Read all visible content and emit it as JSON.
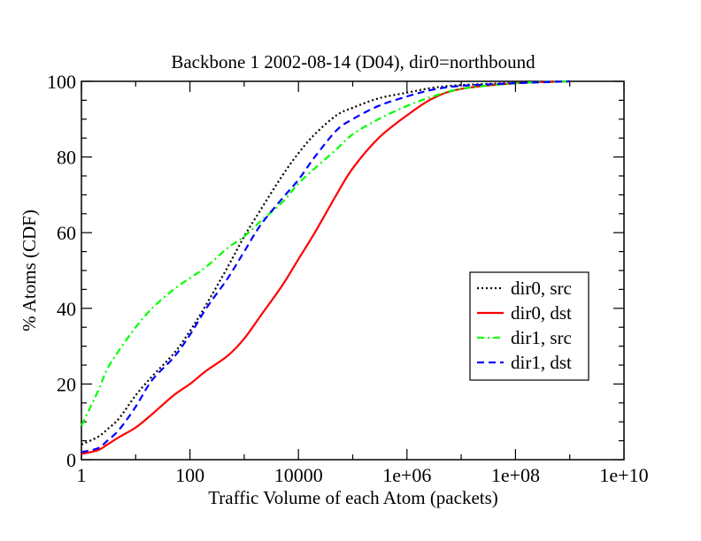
{
  "chart_data": {
    "type": "line",
    "title": "Backbone 1 2002-08-14 (D04), dir0=northbound",
    "xlabel": "Traffic Volume of each Atom (packets)",
    "ylabel": "% Atoms (CDF)",
    "xscale": "log",
    "xlim": [
      1,
      10000000000
    ],
    "ylim": [
      0,
      100
    ],
    "x_ticks": [
      1,
      100,
      10000,
      1000000,
      100000000,
      10000000000
    ],
    "x_tick_labels": [
      "1",
      "100",
      "10000",
      "1e+06",
      "1e+08",
      "1e+10"
    ],
    "y_ticks": [
      0,
      20,
      40,
      60,
      80,
      100
    ],
    "y_tick_labels": [
      "0",
      "20",
      "40",
      "60",
      "80",
      "100"
    ],
    "grid": false,
    "legend_position": "right-middle",
    "series": [
      {
        "name": "dir0, src",
        "color": "#000000",
        "dash": "dotted",
        "points": [
          [
            1,
            4
          ],
          [
            2,
            6
          ],
          [
            3,
            8
          ],
          [
            5,
            11
          ],
          [
            10,
            17
          ],
          [
            20,
            22
          ],
          [
            50,
            28
          ],
          [
            100,
            34
          ],
          [
            200,
            41
          ],
          [
            500,
            51
          ],
          [
            1000,
            59
          ],
          [
            2000,
            66
          ],
          [
            5000,
            75
          ],
          [
            10000,
            81
          ],
          [
            20000,
            86
          ],
          [
            50000,
            91
          ],
          [
            100000,
            93
          ],
          [
            300000,
            95.5
          ],
          [
            1000000,
            97
          ],
          [
            3000000,
            98.3
          ],
          [
            10000000,
            99
          ],
          [
            100000000,
            99.6
          ],
          [
            1000000000,
            100
          ]
        ]
      },
      {
        "name": "dir0, dst",
        "color": "#ff0000",
        "dash": "solid",
        "points": [
          [
            1,
            1.5
          ],
          [
            2,
            2.5
          ],
          [
            3,
            4
          ],
          [
            5,
            6
          ],
          [
            10,
            8.5
          ],
          [
            20,
            12
          ],
          [
            50,
            17
          ],
          [
            100,
            20
          ],
          [
            200,
            23.5
          ],
          [
            500,
            27.5
          ],
          [
            1000,
            32
          ],
          [
            2000,
            38
          ],
          [
            5000,
            46
          ],
          [
            10000,
            53
          ],
          [
            20000,
            60
          ],
          [
            50000,
            70
          ],
          [
            100000,
            77
          ],
          [
            300000,
            85
          ],
          [
            1000000,
            91
          ],
          [
            3000000,
            95.5
          ],
          [
            10000000,
            98
          ],
          [
            100000000,
            99.5
          ],
          [
            1000000000,
            100
          ]
        ]
      },
      {
        "name": "dir1, src",
        "color": "#00ff00",
        "dash": "dash-dot",
        "points": [
          [
            1,
            9
          ],
          [
            2,
            18
          ],
          [
            3,
            24
          ],
          [
            5,
            29
          ],
          [
            10,
            35
          ],
          [
            20,
            40
          ],
          [
            50,
            45
          ],
          [
            100,
            48
          ],
          [
            200,
            51
          ],
          [
            500,
            56
          ],
          [
            1000,
            59
          ],
          [
            2000,
            63
          ],
          [
            5000,
            68
          ],
          [
            10000,
            73
          ],
          [
            20000,
            77
          ],
          [
            50000,
            82
          ],
          [
            100000,
            86
          ],
          [
            300000,
            90
          ],
          [
            1000000,
            93.5
          ],
          [
            3000000,
            96
          ],
          [
            10000000,
            98
          ],
          [
            100000000,
            99.5
          ],
          [
            1000000000,
            100
          ]
        ]
      },
      {
        "name": "dir1, dst",
        "color": "#0000ff",
        "dash": "dashed",
        "points": [
          [
            1,
            2
          ],
          [
            2,
            3
          ],
          [
            3,
            5
          ],
          [
            5,
            8
          ],
          [
            10,
            14
          ],
          [
            20,
            21
          ],
          [
            50,
            27
          ],
          [
            100,
            33
          ],
          [
            200,
            40
          ],
          [
            500,
            48
          ],
          [
            1000,
            55
          ],
          [
            2000,
            62
          ],
          [
            5000,
            69
          ],
          [
            10000,
            74
          ],
          [
            20000,
            80
          ],
          [
            50000,
            87
          ],
          [
            100000,
            90
          ],
          [
            300000,
            93.5
          ],
          [
            1000000,
            96
          ],
          [
            3000000,
            97.8
          ],
          [
            10000000,
            98.8
          ],
          [
            100000000,
            99.5
          ],
          [
            1000000000,
            100
          ]
        ]
      }
    ]
  }
}
